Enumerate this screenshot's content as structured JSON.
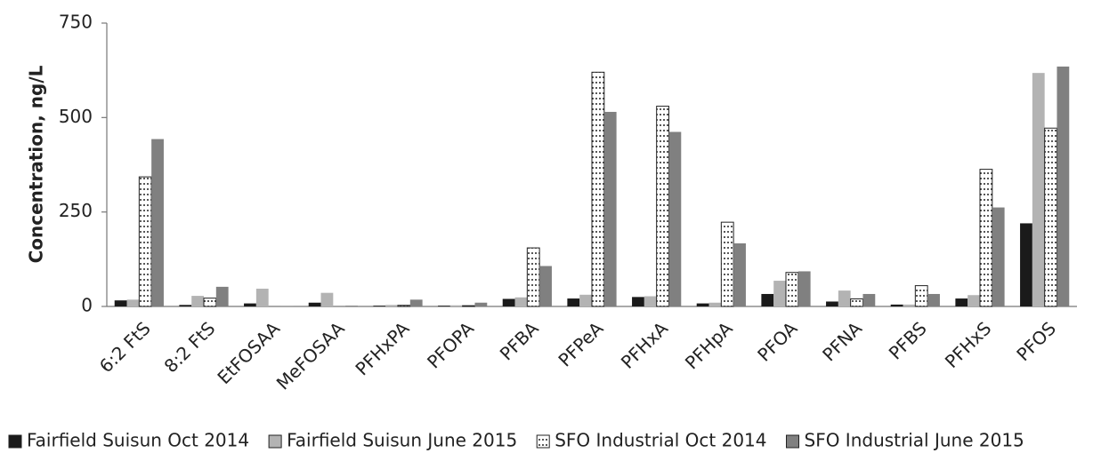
{
  "chart_data": {
    "type": "bar",
    "y_label": "Concentration, ng/L",
    "categories": [
      "6:2 FtS",
      "8:2 FtS",
      "EtFOSAA",
      "MeFOSAA",
      "PFHxPA",
      "PFOPA",
      "PFBA",
      "PFPeA",
      "PFHxA",
      "PFHpA",
      "PFOA",
      "PFNA",
      "PFBS",
      "PFHxS",
      "PFOS"
    ],
    "series": [
      {
        "name": "Fairfield Suisun Oct 2014",
        "color": "#1a1a1a",
        "values": [
          16,
          4,
          8,
          10,
          2,
          2,
          20,
          21,
          25,
          8,
          33,
          13,
          5,
          21,
          220
        ]
      },
      {
        "name": "Fairfield Suisun June 2015",
        "color": "#b3b3b3",
        "values": [
          18,
          28,
          47,
          36,
          4,
          3,
          24,
          31,
          27,
          10,
          68,
          42,
          5,
          30,
          618
        ]
      },
      {
        "name": "SFO Industrial Oct 2014",
        "color": "#ffffff",
        "pattern": "dotted",
        "values": [
          343,
          22,
          0,
          0,
          3,
          2,
          155,
          620,
          530,
          223,
          90,
          20,
          55,
          363,
          472
        ]
      },
      {
        "name": "SFO Industrial June 2015",
        "color": "#808080",
        "values": [
          443,
          52,
          1,
          2,
          18,
          10,
          107,
          515,
          462,
          167,
          93,
          33,
          33,
          262,
          635
        ]
      }
    ],
    "ylim": [
      0,
      750
    ],
    "yticks": [
      0,
      250,
      500,
      750
    ],
    "grid": false,
    "legend": "bottom"
  }
}
